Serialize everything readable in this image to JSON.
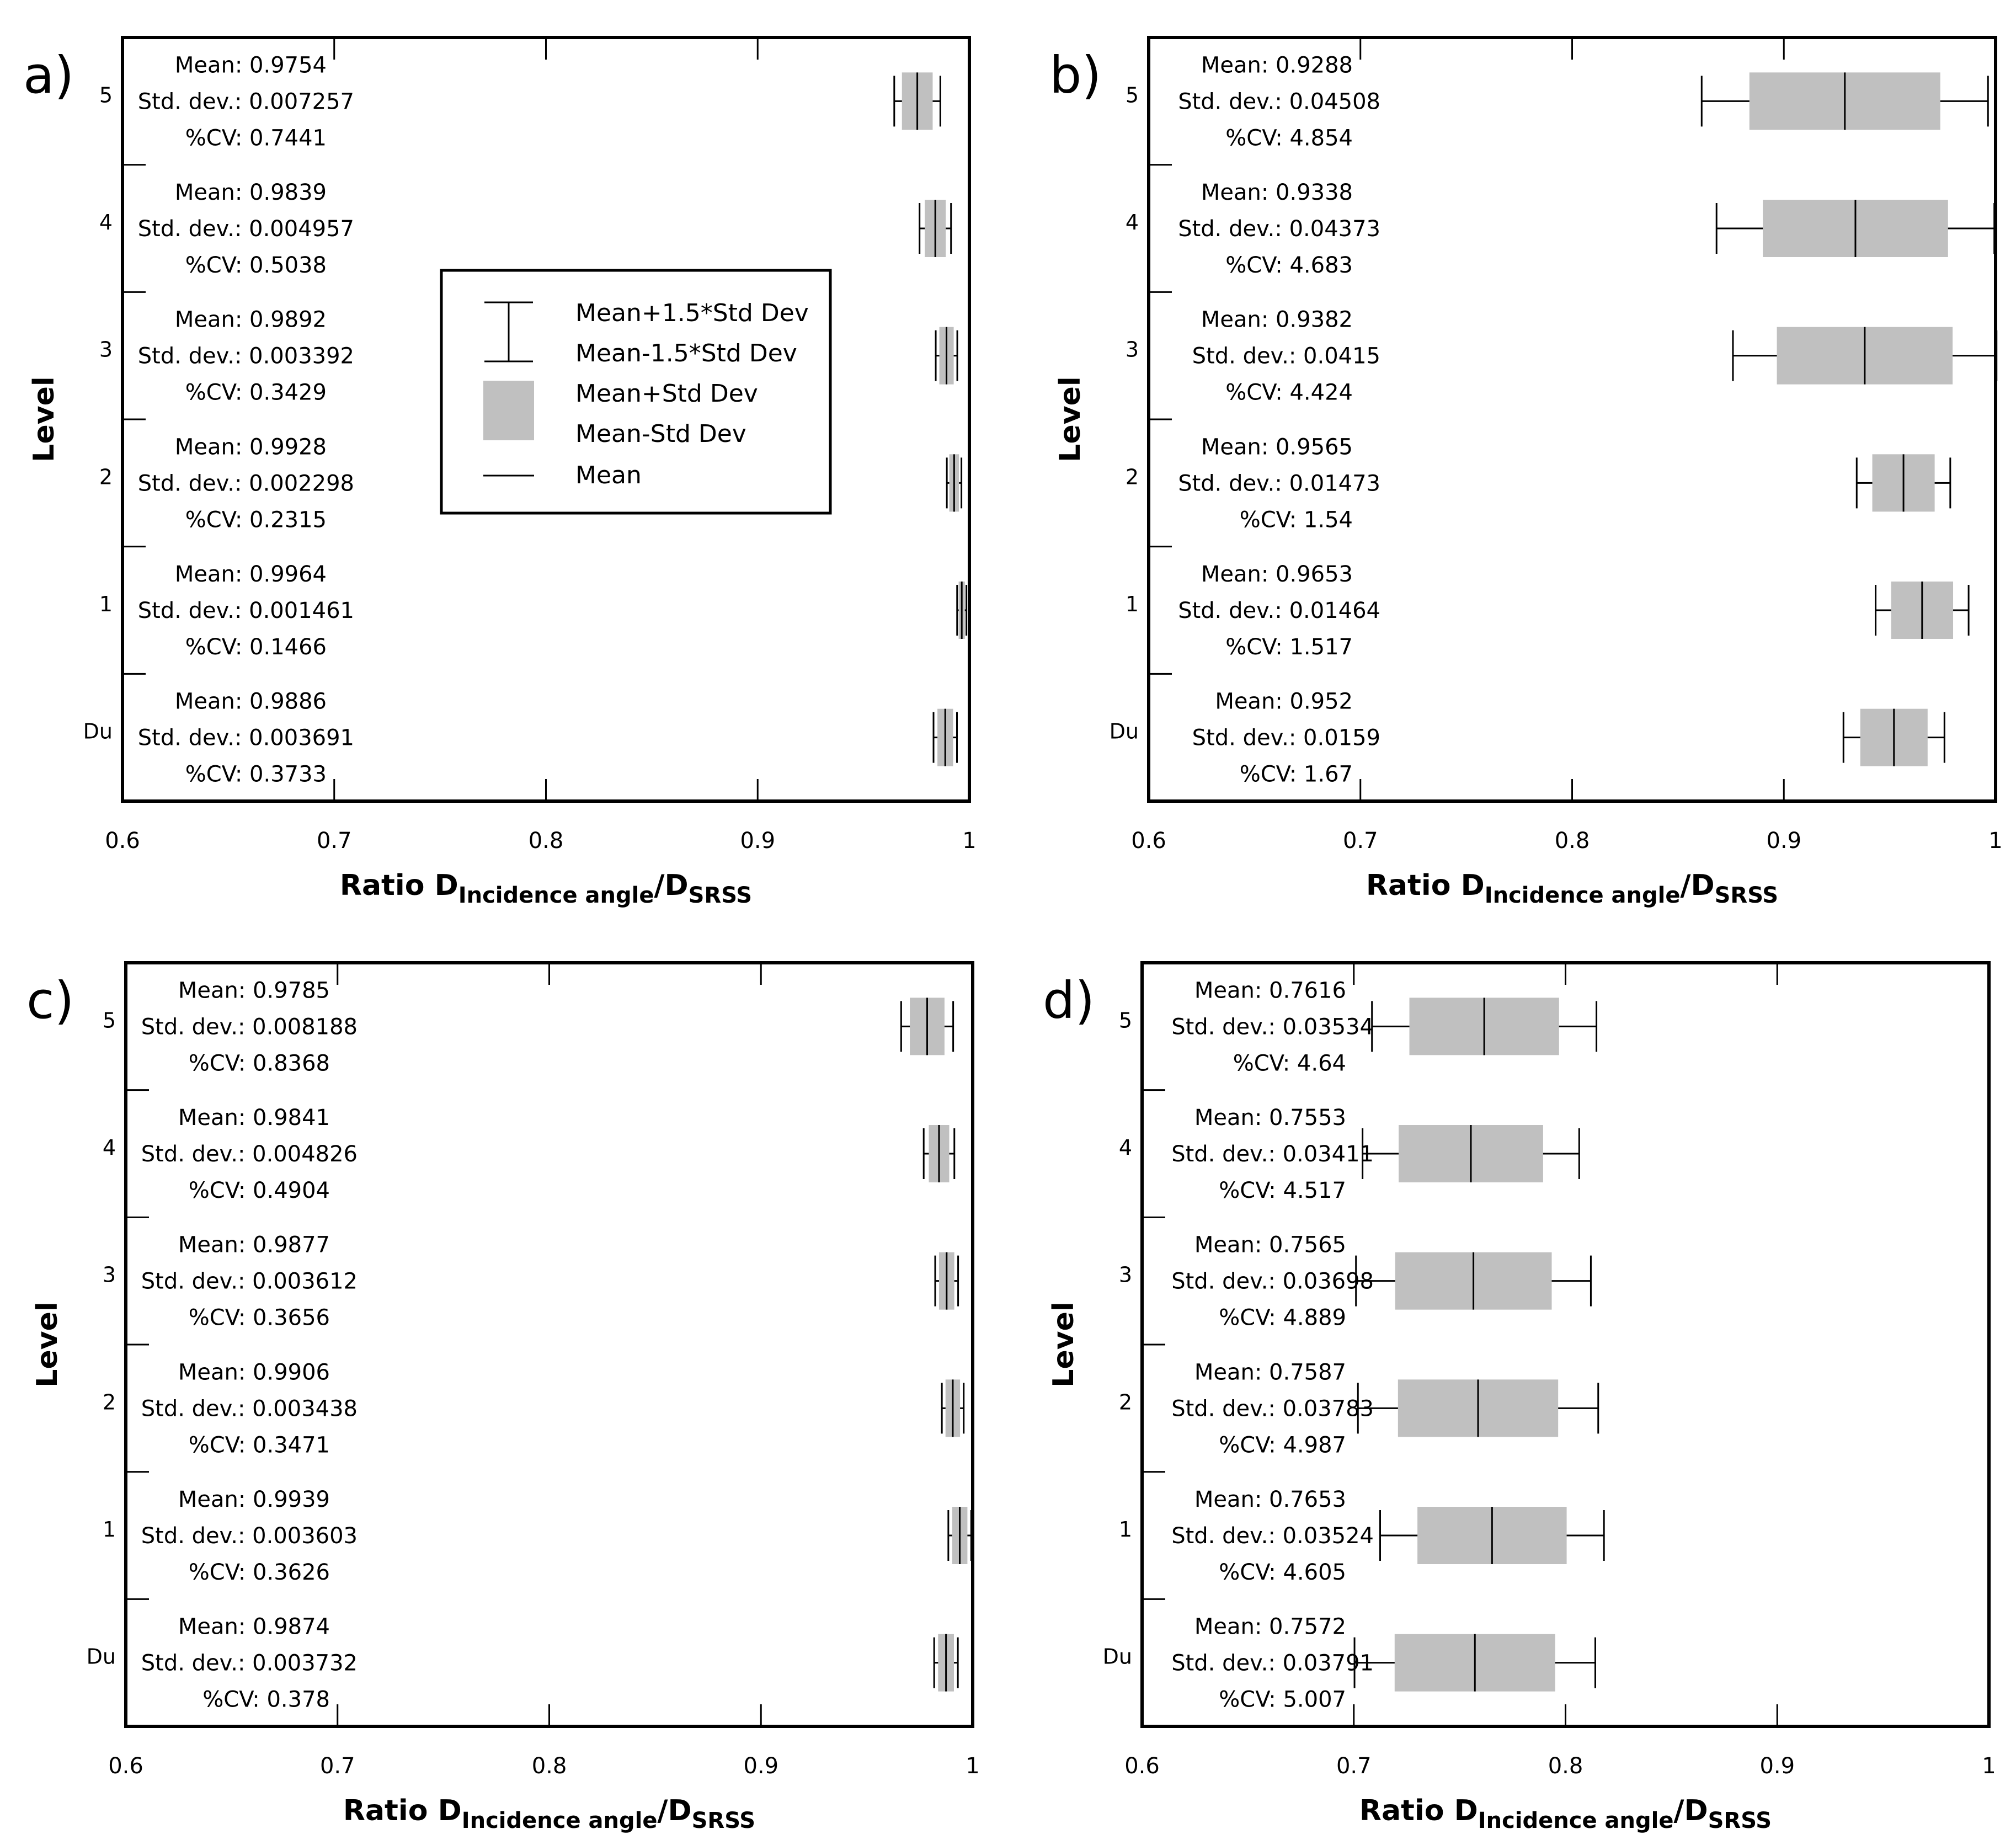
{
  "colors": {
    "box_fill": "#c0c0c0",
    "axis": "#000000",
    "background": "#ffffff"
  },
  "chart_data": [
    {
      "panel_label": "a)",
      "type": "boxplot-horizontal",
      "xlim": [
        0.6,
        1
      ],
      "x_ticks": [
        "0.6",
        "0.7",
        "0.8",
        "0.9",
        "1"
      ],
      "ylabel": "Level",
      "xlabel": {
        "prefix": "Ratio D",
        "sub1": "Incidence angle",
        "mid": "/D",
        "sub2": "SRSS"
      },
      "legend": {
        "whisker_top": "Mean+1.5*Std Dev",
        "whisker_bottom": "Mean-1.5*Std Dev",
        "box_top": "Mean+Std Dev",
        "box_bottom": "Mean-Std Dev",
        "mean": "Mean"
      },
      "rows": [
        {
          "level": "5",
          "mean": 0.9754,
          "std": 0.007257,
          "mean_text": "Mean: 0.9754",
          "std_text": "Std. dev.: 0.007257",
          "cv_text": "%CV: 0.7441"
        },
        {
          "level": "4",
          "mean": 0.9839,
          "std": 0.004957,
          "mean_text": "Mean: 0.9839",
          "std_text": "Std. dev.: 0.004957",
          "cv_text": "%CV: 0.5038"
        },
        {
          "level": "3",
          "mean": 0.9892,
          "std": 0.003392,
          "mean_text": "Mean: 0.9892",
          "std_text": "Std. dev.: 0.003392",
          "cv_text": "%CV: 0.3429"
        },
        {
          "level": "2",
          "mean": 0.9928,
          "std": 0.002298,
          "mean_text": "Mean: 0.9928",
          "std_text": "Std. dev.: 0.002298",
          "cv_text": "%CV: 0.2315"
        },
        {
          "level": "1",
          "mean": 0.9964,
          "std": 0.001461,
          "mean_text": "Mean: 0.9964",
          "std_text": "Std. dev.: 0.001461",
          "cv_text": "%CV: 0.1466"
        },
        {
          "level": "Du",
          "mean": 0.9886,
          "std": 0.003691,
          "mean_text": "Mean: 0.9886",
          "std_text": "Std. dev.: 0.003691",
          "cv_text": "%CV: 0.3733"
        }
      ]
    },
    {
      "panel_label": "b)",
      "type": "boxplot-horizontal",
      "xlim": [
        0.6,
        1
      ],
      "x_ticks": [
        "0.6",
        "0.7",
        "0.8",
        "0.9",
        "1"
      ],
      "ylabel": "Level",
      "xlabel": {
        "prefix": "Ratio D",
        "sub1": "Incidence angle",
        "mid": "/D",
        "sub2": "SRSS"
      },
      "rows": [
        {
          "level": "5",
          "mean": 0.9288,
          "std": 0.04508,
          "mean_text": "Mean: 0.9288",
          "std_text": "Std. dev.: 0.04508",
          "cv_text": "%CV: 4.854"
        },
        {
          "level": "4",
          "mean": 0.9338,
          "std": 0.04373,
          "mean_text": "Mean: 0.9338",
          "std_text": "Std. dev.: 0.04373",
          "cv_text": "%CV: 4.683"
        },
        {
          "level": "3",
          "mean": 0.9382,
          "std": 0.0415,
          "mean_text": "Mean: 0.9382",
          "std_text": "Std. dev.: 0.0415",
          "cv_text": "%CV: 4.424"
        },
        {
          "level": "2",
          "mean": 0.9565,
          "std": 0.01473,
          "mean_text": "Mean: 0.9565",
          "std_text": "Std. dev.: 0.01473",
          "cv_text": "%CV: 1.54"
        },
        {
          "level": "1",
          "mean": 0.9653,
          "std": 0.01464,
          "mean_text": "Mean: 0.9653",
          "std_text": "Std. dev.: 0.01464",
          "cv_text": "%CV: 1.517"
        },
        {
          "level": "Du",
          "mean": 0.952,
          "std": 0.0159,
          "mean_text": "Mean: 0.952",
          "std_text": "Std. dev.: 0.0159",
          "cv_text": "%CV: 1.67"
        }
      ]
    },
    {
      "panel_label": "c)",
      "type": "boxplot-horizontal",
      "xlim": [
        0.6,
        1
      ],
      "x_ticks": [
        "0.6",
        "0.7",
        "0.8",
        "0.9",
        "1"
      ],
      "ylabel": "Level",
      "xlabel": {
        "prefix": "Ratio D",
        "sub1": "Incidence angle",
        "mid": "/D",
        "sub2": "SRSS"
      },
      "rows": [
        {
          "level": "5",
          "mean": 0.9785,
          "std": 0.008188,
          "mean_text": "Mean: 0.9785",
          "std_text": "Std. dev.: 0.008188",
          "cv_text": "%CV: 0.8368"
        },
        {
          "level": "4",
          "mean": 0.9841,
          "std": 0.004826,
          "mean_text": "Mean: 0.9841",
          "std_text": "Std. dev.: 0.004826",
          "cv_text": "%CV: 0.4904"
        },
        {
          "level": "3",
          "mean": 0.9877,
          "std": 0.003612,
          "mean_text": "Mean: 0.9877",
          "std_text": "Std. dev.: 0.003612",
          "cv_text": "%CV: 0.3656"
        },
        {
          "level": "2",
          "mean": 0.9906,
          "std": 0.003438,
          "mean_text": "Mean: 0.9906",
          "std_text": "Std. dev.: 0.003438",
          "cv_text": "%CV: 0.3471"
        },
        {
          "level": "1",
          "mean": 0.9939,
          "std": 0.003603,
          "mean_text": "Mean: 0.9939",
          "std_text": "Std. dev.: 0.003603",
          "cv_text": "%CV: 0.3626"
        },
        {
          "level": "Du",
          "mean": 0.9874,
          "std": 0.003732,
          "mean_text": "Mean: 0.9874",
          "std_text": "Std. dev.: 0.003732",
          "cv_text": "%CV: 0.378"
        }
      ]
    },
    {
      "panel_label": "d)",
      "type": "boxplot-horizontal",
      "xlim": [
        0.6,
        1
      ],
      "x_ticks": [
        "0.6",
        "0.7",
        "0.8",
        "0.9",
        "1"
      ],
      "ylabel": "Level",
      "xlabel": {
        "prefix": "Ratio D",
        "sub1": "Incidence angle",
        "mid": "/D",
        "sub2": "SRSS"
      },
      "rows": [
        {
          "level": "5",
          "mean": 0.7616,
          "std": 0.03534,
          "mean_text": "Mean: 0.7616",
          "std_text": "Std. dev.: 0.03534",
          "cv_text": "%CV: 4.64"
        },
        {
          "level": "4",
          "mean": 0.7553,
          "std": 0.03411,
          "mean_text": "Mean: 0.7553",
          "std_text": "Std. dev.: 0.03411",
          "cv_text": "%CV: 4.517"
        },
        {
          "level": "3",
          "mean": 0.7565,
          "std": 0.03698,
          "mean_text": "Mean: 0.7565",
          "std_text": "Std. dev.: 0.03698",
          "cv_text": "%CV: 4.889"
        },
        {
          "level": "2",
          "mean": 0.7587,
          "std": 0.03783,
          "mean_text": "Mean: 0.7587",
          "std_text": "Std. dev.: 0.03783",
          "cv_text": "%CV: 4.987"
        },
        {
          "level": "1",
          "mean": 0.7653,
          "std": 0.03524,
          "mean_text": "Mean: 0.7653",
          "std_text": "Std. dev.: 0.03524",
          "cv_text": "%CV: 4.605"
        },
        {
          "level": "Du",
          "mean": 0.7572,
          "std": 0.03791,
          "mean_text": "Mean: 0.7572",
          "std_text": "Std. dev.: 0.03791",
          "cv_text": "%CV: 5.007"
        }
      ]
    }
  ]
}
